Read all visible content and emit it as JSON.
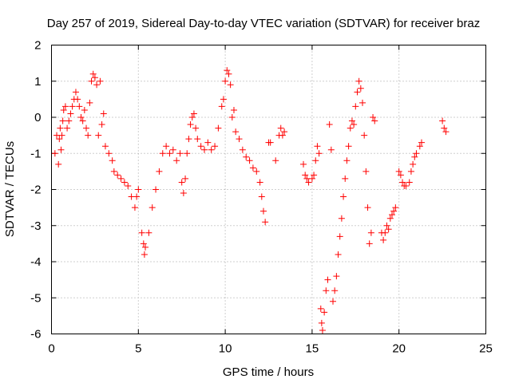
{
  "chart_data": {
    "type": "scatter",
    "title": "Day 257 of 2019, Sidereal Day-to-day VTEC variation (SDTVAR) for receiver braz",
    "xlabel": "GPS time / hours",
    "ylabel": "SDTVAR / TECUs",
    "xlim": [
      0,
      25
    ],
    "ylim": [
      -6,
      2
    ],
    "xticks": [
      0,
      5,
      10,
      15,
      20,
      25
    ],
    "yticks": [
      -6,
      -5,
      -4,
      -3,
      -2,
      -1,
      0,
      1,
      2
    ],
    "grid": true,
    "marker": "+",
    "color": "#ff0000",
    "series": [
      {
        "name": "SDTVAR",
        "points": [
          [
            0.2,
            -1.0
          ],
          [
            0.3,
            -0.5
          ],
          [
            0.4,
            -1.3
          ],
          [
            0.45,
            -0.6
          ],
          [
            0.5,
            -0.3
          ],
          [
            0.55,
            -0.9
          ],
          [
            0.6,
            -0.5
          ],
          [
            0.65,
            -0.1
          ],
          [
            0.7,
            0.2
          ],
          [
            0.8,
            0.3
          ],
          [
            0.9,
            -0.3
          ],
          [
            1.0,
            -0.1
          ],
          [
            1.1,
            0.1
          ],
          [
            1.2,
            0.3
          ],
          [
            1.3,
            0.5
          ],
          [
            1.4,
            0.7
          ],
          [
            1.5,
            0.5
          ],
          [
            1.6,
            0.3
          ],
          [
            1.7,
            0.0
          ],
          [
            1.8,
            -0.1
          ],
          [
            1.9,
            0.2
          ],
          [
            2.0,
            -0.3
          ],
          [
            2.1,
            -0.5
          ],
          [
            2.2,
            0.4
          ],
          [
            2.3,
            1.0
          ],
          [
            2.4,
            1.2
          ],
          [
            2.5,
            1.1
          ],
          [
            2.6,
            0.9
          ],
          [
            2.7,
            -0.5
          ],
          [
            2.8,
            1.0
          ],
          [
            2.9,
            -0.2
          ],
          [
            3.0,
            0.1
          ],
          [
            3.1,
            -0.8
          ],
          [
            3.3,
            -1.0
          ],
          [
            3.5,
            -1.2
          ],
          [
            3.6,
            -1.5
          ],
          [
            3.8,
            -1.6
          ],
          [
            4.0,
            -1.7
          ],
          [
            4.2,
            -1.8
          ],
          [
            4.4,
            -1.9
          ],
          [
            4.6,
            -2.2
          ],
          [
            4.8,
            -2.5
          ],
          [
            4.9,
            -2.2
          ],
          [
            5.0,
            -2.0
          ],
          [
            5.2,
            -3.2
          ],
          [
            5.3,
            -3.5
          ],
          [
            5.35,
            -3.8
          ],
          [
            5.4,
            -3.6
          ],
          [
            5.6,
            -3.2
          ],
          [
            5.8,
            -2.5
          ],
          [
            6.0,
            -2.0
          ],
          [
            6.2,
            -1.5
          ],
          [
            6.4,
            -1.0
          ],
          [
            6.6,
            -0.8
          ],
          [
            6.8,
            -1.0
          ],
          [
            7.0,
            -0.9
          ],
          [
            7.2,
            -1.2
          ],
          [
            7.4,
            -1.0
          ],
          [
            7.5,
            -1.8
          ],
          [
            7.6,
            -2.1
          ],
          [
            7.7,
            -1.7
          ],
          [
            7.8,
            -1.0
          ],
          [
            7.9,
            -0.6
          ],
          [
            8.0,
            -0.2
          ],
          [
            8.1,
            0.0
          ],
          [
            8.2,
            0.1
          ],
          [
            8.3,
            -0.3
          ],
          [
            8.4,
            -0.6
          ],
          [
            8.6,
            -0.8
          ],
          [
            8.8,
            -0.9
          ],
          [
            9.0,
            -0.7
          ],
          [
            9.2,
            -0.9
          ],
          [
            9.4,
            -0.8
          ],
          [
            9.6,
            -0.3
          ],
          [
            9.8,
            0.3
          ],
          [
            9.9,
            0.5
          ],
          [
            10.0,
            1.0
          ],
          [
            10.1,
            1.3
          ],
          [
            10.2,
            1.2
          ],
          [
            10.3,
            0.9
          ],
          [
            10.4,
            0.0
          ],
          [
            10.5,
            0.2
          ],
          [
            10.6,
            -0.4
          ],
          [
            10.8,
            -0.6
          ],
          [
            11.0,
            -0.9
          ],
          [
            11.2,
            -1.1
          ],
          [
            11.4,
            -1.2
          ],
          [
            11.6,
            -1.4
          ],
          [
            11.8,
            -1.5
          ],
          [
            12.0,
            -1.8
          ],
          [
            12.1,
            -2.2
          ],
          [
            12.2,
            -2.6
          ],
          [
            12.3,
            -2.9
          ],
          [
            12.5,
            -0.7
          ],
          [
            12.6,
            -0.7
          ],
          [
            12.9,
            -1.2
          ],
          [
            13.1,
            -0.5
          ],
          [
            13.2,
            -0.3
          ],
          [
            13.3,
            -0.5
          ],
          [
            13.4,
            -0.4
          ],
          [
            14.5,
            -1.3
          ],
          [
            14.6,
            -1.6
          ],
          [
            14.7,
            -1.7
          ],
          [
            14.8,
            -1.8
          ],
          [
            15.0,
            -1.7
          ],
          [
            15.1,
            -1.6
          ],
          [
            15.2,
            -1.2
          ],
          [
            15.3,
            -0.8
          ],
          [
            15.4,
            -1.0
          ],
          [
            15.5,
            -5.3
          ],
          [
            15.55,
            -5.7
          ],
          [
            15.6,
            -5.9
          ],
          [
            15.7,
            -5.4
          ],
          [
            15.8,
            -4.8
          ],
          [
            15.9,
            -4.5
          ],
          [
            16.0,
            -0.2
          ],
          [
            16.1,
            -0.9
          ],
          [
            16.2,
            -5.1
          ],
          [
            16.3,
            -4.8
          ],
          [
            16.4,
            -4.4
          ],
          [
            16.5,
            -3.8
          ],
          [
            16.6,
            -3.3
          ],
          [
            16.7,
            -2.8
          ],
          [
            16.8,
            -2.2
          ],
          [
            16.9,
            -1.7
          ],
          [
            17.0,
            -1.2
          ],
          [
            17.1,
            -0.8
          ],
          [
            17.2,
            -0.3
          ],
          [
            17.3,
            -0.1
          ],
          [
            17.4,
            -0.2
          ],
          [
            17.5,
            0.3
          ],
          [
            17.6,
            0.7
          ],
          [
            17.7,
            1.0
          ],
          [
            17.8,
            0.8
          ],
          [
            17.9,
            0.4
          ],
          [
            18.0,
            -0.5
          ],
          [
            18.1,
            -1.5
          ],
          [
            18.2,
            -2.5
          ],
          [
            18.3,
            -3.5
          ],
          [
            18.4,
            -3.2
          ],
          [
            18.5,
            0.0
          ],
          [
            18.6,
            -0.1
          ],
          [
            19.0,
            -3.2
          ],
          [
            19.1,
            -3.4
          ],
          [
            19.2,
            -3.2
          ],
          [
            19.3,
            -3.0
          ],
          [
            19.4,
            -3.1
          ],
          [
            19.5,
            -2.8
          ],
          [
            19.6,
            -2.7
          ],
          [
            19.7,
            -2.6
          ],
          [
            19.8,
            -2.5
          ],
          [
            20.0,
            -1.5
          ],
          [
            20.1,
            -1.6
          ],
          [
            20.2,
            -1.8
          ],
          [
            20.3,
            -1.9
          ],
          [
            20.4,
            -1.9
          ],
          [
            20.6,
            -1.8
          ],
          [
            20.7,
            -1.5
          ],
          [
            20.8,
            -1.3
          ],
          [
            20.9,
            -1.1
          ],
          [
            21.0,
            -1.0
          ],
          [
            21.2,
            -0.8
          ],
          [
            21.3,
            -0.7
          ],
          [
            22.5,
            -0.1
          ],
          [
            22.6,
            -0.3
          ],
          [
            22.7,
            -0.4
          ]
        ]
      }
    ]
  }
}
